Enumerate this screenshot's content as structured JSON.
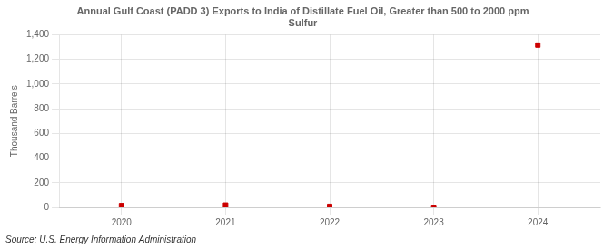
{
  "chart_data": {
    "type": "scatter",
    "title": "Annual Gulf Coast (PADD 3) Exports to India of Distillate Fuel Oil, Greater than 500 to 2000 ppm\nSulfur",
    "ylabel": "Thousand Barrels",
    "annotations": [
      "Source: U.S. Energy Information Administration"
    ],
    "x": [
      2020,
      2021,
      2022,
      2023,
      2024
    ],
    "values": [
      14,
      18,
      8,
      0,
      1316
    ],
    "color": "#cc0000",
    "marker": "square",
    "xlim": [
      2019.4,
      2024.6
    ],
    "xticks": [
      2020,
      2021,
      2022,
      2023,
      2024
    ],
    "ylim": [
      0,
      1400
    ],
    "yticks": [
      0,
      200,
      400,
      600,
      800,
      {
        "value": 1000,
        "label": "1,000"
      },
      {
        "value": 1200,
        "label": "1,200"
      },
      {
        "value": 1400,
        "label": "1,400"
      }
    ],
    "grid": true
  }
}
